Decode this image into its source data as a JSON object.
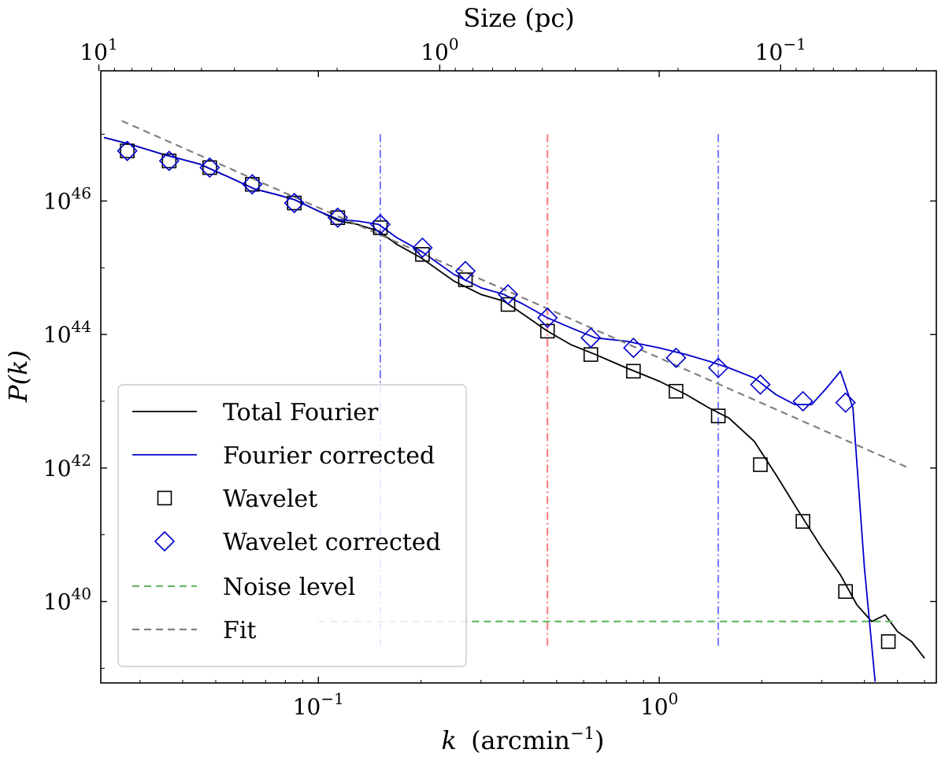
{
  "chart_data": {
    "type": "line",
    "title": "",
    "xscale": "log",
    "yscale": "log",
    "xlabel": {
      "main": "k",
      "unit_open": "(arcmin",
      "unit_exp": "−1",
      "unit_close": ")"
    },
    "ylabel": "P(k)",
    "top_axis_label": "Size (pc)",
    "xlim": [
      0.023,
      6.5
    ],
    "ylim_log10": [
      38.78,
      47.95
    ],
    "x_ticks": [
      {
        "value": 0.1,
        "base": "10",
        "exp": "−1"
      },
      {
        "value": 1,
        "base": "10",
        "exp": "0"
      }
    ],
    "y_ticks": [
      {
        "log10": 40,
        "base": "10",
        "exp": "40"
      },
      {
        "log10": 42,
        "base": "10",
        "exp": "42"
      },
      {
        "log10": 44,
        "base": "10",
        "exp": "44"
      },
      {
        "log10": 46,
        "base": "10",
        "exp": "46"
      }
    ],
    "top_ticks": [
      {
        "k": 0.0227,
        "base": "10",
        "exp": "1"
      },
      {
        "k": 0.227,
        "base": "10",
        "exp": "0"
      },
      {
        "k": 2.27,
        "base": "10",
        "exp": "−1"
      }
    ],
    "series": [
      {
        "name": "Total Fourier",
        "kind": "line",
        "color": "#000000",
        "x": [
          0.0235,
          0.028,
          0.035,
          0.045,
          0.055,
          0.065,
          0.075,
          0.085,
          0.1,
          0.115,
          0.13,
          0.15,
          0.17,
          0.2,
          0.25,
          0.3,
          0.35,
          0.4,
          0.47,
          0.55,
          0.65,
          0.8,
          1.0,
          1.2,
          1.4,
          1.6,
          1.9,
          2.2,
          2.6,
          3.0,
          3.4,
          3.8,
          4.2,
          4.6,
          5.0,
          5.5,
          6.0
        ],
        "log10_y": [
          46.95,
          46.85,
          46.7,
          46.55,
          46.35,
          46.18,
          46.1,
          46.02,
          45.85,
          45.7,
          45.65,
          45.55,
          45.35,
          45.15,
          44.8,
          44.6,
          44.5,
          44.3,
          44.05,
          43.85,
          43.7,
          43.5,
          43.3,
          43.1,
          42.9,
          42.75,
          42.4,
          41.9,
          41.3,
          40.8,
          40.4,
          39.95,
          39.7,
          39.8,
          39.55,
          39.4,
          39.15
        ]
      },
      {
        "name": "Fourier corrected",
        "kind": "line",
        "color": "#0000cc",
        "x": [
          0.0235,
          0.028,
          0.035,
          0.045,
          0.055,
          0.065,
          0.075,
          0.085,
          0.1,
          0.115,
          0.13,
          0.15,
          0.17,
          0.2,
          0.25,
          0.3,
          0.35,
          0.4,
          0.47,
          0.55,
          0.65,
          0.8,
          1.0,
          1.2,
          1.4,
          1.6,
          1.9,
          2.2,
          2.5,
          2.8,
          3.1,
          3.4,
          3.7,
          4.0,
          4.3
        ],
        "log10_y": [
          46.95,
          46.85,
          46.7,
          46.55,
          46.35,
          46.18,
          46.1,
          46.02,
          45.85,
          45.72,
          45.7,
          45.65,
          45.45,
          45.25,
          44.9,
          44.7,
          44.6,
          44.45,
          44.25,
          44.1,
          43.95,
          43.9,
          43.8,
          43.7,
          43.6,
          43.5,
          43.35,
          43.1,
          42.95,
          42.95,
          43.2,
          43.45,
          42.9,
          40.5,
          38.8
        ]
      },
      {
        "name": "Wavelet",
        "kind": "markers",
        "marker": "square",
        "color": "#000000",
        "x": [
          0.0275,
          0.0365,
          0.048,
          0.064,
          0.085,
          0.114,
          0.152,
          0.202,
          0.27,
          0.36,
          0.47,
          0.63,
          0.84,
          1.12,
          1.49,
          1.98,
          2.64,
          3.52,
          4.7
        ],
        "log10_y": [
          46.75,
          46.6,
          46.5,
          46.25,
          45.97,
          45.75,
          45.6,
          45.2,
          44.82,
          44.45,
          44.05,
          43.7,
          43.45,
          43.15,
          42.78,
          42.05,
          41.2,
          40.15,
          39.4
        ]
      },
      {
        "name": "Wavelet corrected",
        "kind": "markers",
        "marker": "diamond",
        "color": "#0000cc",
        "x": [
          0.0275,
          0.0365,
          0.048,
          0.064,
          0.085,
          0.114,
          0.152,
          0.202,
          0.27,
          0.36,
          0.47,
          0.63,
          0.84,
          1.12,
          1.49,
          1.98,
          2.64,
          3.52
        ],
        "log10_y": [
          46.75,
          46.6,
          46.5,
          46.25,
          45.97,
          45.75,
          45.65,
          45.3,
          44.95,
          44.6,
          44.25,
          43.95,
          43.8,
          43.65,
          43.5,
          43.25,
          43.0,
          42.98
        ]
      },
      {
        "name": "Noise level",
        "kind": "line",
        "style": "dashed",
        "color": "#66bb66",
        "x": [
          0.1,
          5.0
        ],
        "log10_y": [
          39.7,
          39.7
        ]
      },
      {
        "name": "Fit",
        "kind": "line",
        "style": "dashed",
        "color": "#808080",
        "x": [
          0.0265,
          5.4
        ],
        "log10_y": [
          47.2,
          42.0
        ]
      }
    ],
    "vertical_lines": [
      {
        "name": "scale-left",
        "x": 0.152,
        "color": "#7777ff",
        "log10_ymin": 39.3,
        "log10_ymax": 47.0
      },
      {
        "name": "scale-middle",
        "x": 0.47,
        "color": "#ff7777",
        "log10_ymin": 39.3,
        "log10_ymax": 47.0
      },
      {
        "name": "scale-right",
        "x": 1.49,
        "color": "#7777ff",
        "log10_ymin": 39.3,
        "log10_ymax": 47.0
      }
    ],
    "legend": {
      "location": "lower-left",
      "entries": [
        {
          "label": "Total Fourier",
          "kind": "line",
          "color": "#000000"
        },
        {
          "label": "Fourier corrected",
          "kind": "line",
          "color": "#0000cc"
        },
        {
          "label": "Wavelet",
          "kind": "square",
          "color": "#000000"
        },
        {
          "label": "Wavelet corrected",
          "kind": "diamond",
          "color": "#0000cc"
        },
        {
          "label": "Noise level",
          "kind": "dashed",
          "color": "#66bb66"
        },
        {
          "label": "Fit",
          "kind": "dashed",
          "color": "#808080"
        }
      ]
    }
  }
}
